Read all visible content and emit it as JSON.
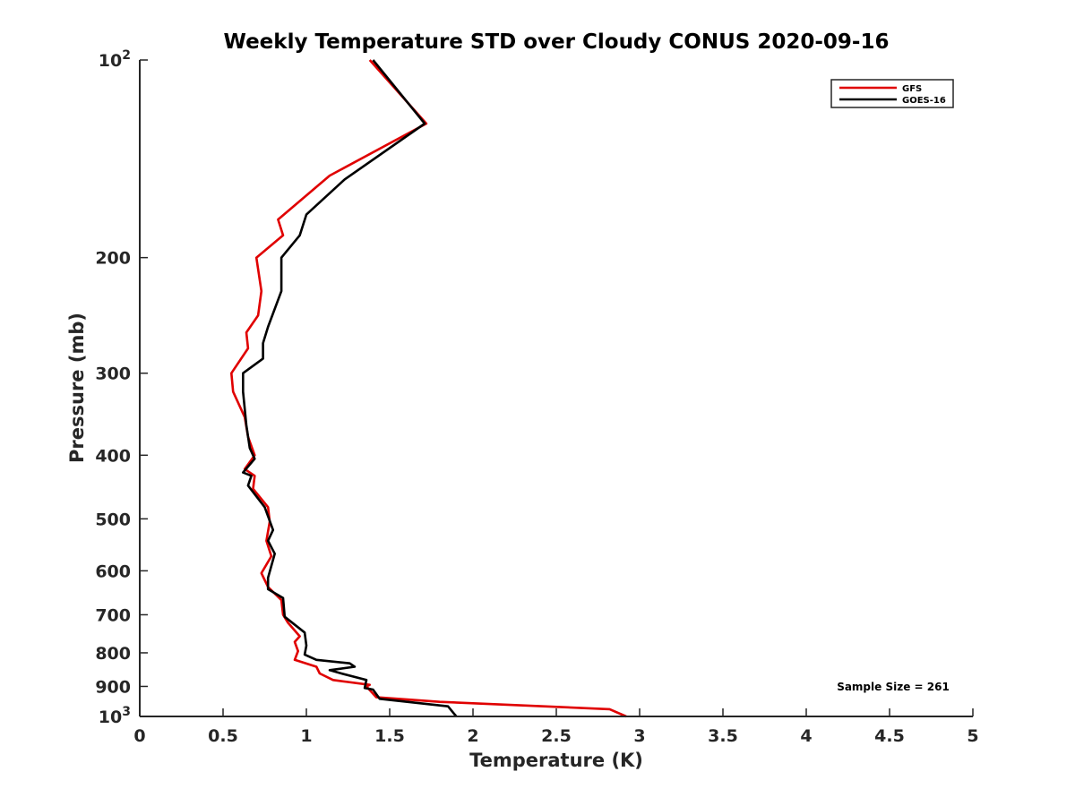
{
  "chart_data": {
    "type": "line",
    "title": "Weekly Temperature STD over Cloudy CONUS 2020-09-16",
    "xlabel": "Temperature (K)",
    "ylabel": "Pressure (mb)",
    "xlim": [
      0,
      5
    ],
    "ylim": [
      100,
      1000
    ],
    "y_scale": "log",
    "y_reversed": true,
    "grid": false,
    "legend_position": "top-right",
    "x_ticks": [
      0,
      0.5,
      1,
      1.5,
      2,
      2.5,
      3,
      3.5,
      4,
      4.5,
      5
    ],
    "x_tick_labels": [
      "0",
      "0.5",
      "1",
      "1.5",
      "2",
      "2.5",
      "3",
      "3.5",
      "4",
      "4.5",
      "5"
    ],
    "y_ticks": [
      100,
      200,
      300,
      400,
      500,
      600,
      700,
      800,
      900,
      1000
    ],
    "y_tick_labels": [
      {
        "base": "10",
        "exp": "2"
      },
      {
        "base": "200",
        "exp": ""
      },
      {
        "base": "300",
        "exp": ""
      },
      {
        "base": "400",
        "exp": ""
      },
      {
        "base": "500",
        "exp": ""
      },
      {
        "base": "600",
        "exp": ""
      },
      {
        "base": "700",
        "exp": ""
      },
      {
        "base": "800",
        "exp": ""
      },
      {
        "base": "900",
        "exp": ""
      },
      {
        "base": "10",
        "exp": "3"
      }
    ],
    "annotation": "Sample Size = 261",
    "series": [
      {
        "name": "GFS",
        "color": "#e00000",
        "points": [
          [
            1.38,
            100
          ],
          [
            1.72,
            125
          ],
          [
            1.14,
            150
          ],
          [
            0.83,
            175
          ],
          [
            0.86,
            185
          ],
          [
            0.7,
            200
          ],
          [
            0.73,
            225
          ],
          [
            0.71,
            245
          ],
          [
            0.64,
            260
          ],
          [
            0.65,
            275
          ],
          [
            0.55,
            300
          ],
          [
            0.56,
            320
          ],
          [
            0.63,
            350
          ],
          [
            0.65,
            375
          ],
          [
            0.69,
            400
          ],
          [
            0.63,
            420
          ],
          [
            0.69,
            430
          ],
          [
            0.68,
            450
          ],
          [
            0.77,
            480
          ],
          [
            0.78,
            505
          ],
          [
            0.76,
            540
          ],
          [
            0.79,
            570
          ],
          [
            0.73,
            605
          ],
          [
            0.77,
            635
          ],
          [
            0.85,
            665
          ],
          [
            0.86,
            700
          ],
          [
            0.89,
            720
          ],
          [
            0.96,
            755
          ],
          [
            0.93,
            770
          ],
          [
            0.95,
            795
          ],
          [
            0.93,
            820
          ],
          [
            1.06,
            840
          ],
          [
            1.08,
            860
          ],
          [
            1.16,
            880
          ],
          [
            1.38,
            895
          ],
          [
            1.36,
            900
          ],
          [
            1.42,
            935
          ],
          [
            1.8,
            950
          ],
          [
            2.82,
            975
          ],
          [
            2.92,
            1000
          ]
        ]
      },
      {
        "name": "GOES-16",
        "color": "#000000",
        "points": [
          [
            1.4,
            100
          ],
          [
            1.71,
            125
          ],
          [
            1.23,
            152
          ],
          [
            1.0,
            172
          ],
          [
            0.96,
            185
          ],
          [
            0.85,
            200
          ],
          [
            0.85,
            225
          ],
          [
            0.77,
            255
          ],
          [
            0.74,
            270
          ],
          [
            0.74,
            285
          ],
          [
            0.62,
            300
          ],
          [
            0.62,
            320
          ],
          [
            0.64,
            360
          ],
          [
            0.66,
            390
          ],
          [
            0.69,
            405
          ],
          [
            0.62,
            425
          ],
          [
            0.67,
            430
          ],
          [
            0.65,
            445
          ],
          [
            0.75,
            480
          ],
          [
            0.8,
            520
          ],
          [
            0.77,
            540
          ],
          [
            0.81,
            565
          ],
          [
            0.77,
            615
          ],
          [
            0.77,
            640
          ],
          [
            0.86,
            660
          ],
          [
            0.87,
            705
          ],
          [
            0.99,
            745
          ],
          [
            1.0,
            780
          ],
          [
            0.99,
            805
          ],
          [
            1.06,
            820
          ],
          [
            1.26,
            830
          ],
          [
            1.29,
            840
          ],
          [
            1.14,
            850
          ],
          [
            1.21,
            860
          ],
          [
            1.36,
            880
          ],
          [
            1.35,
            905
          ],
          [
            1.4,
            910
          ],
          [
            1.44,
            940
          ],
          [
            1.85,
            965
          ],
          [
            1.9,
            1000
          ]
        ]
      }
    ]
  }
}
